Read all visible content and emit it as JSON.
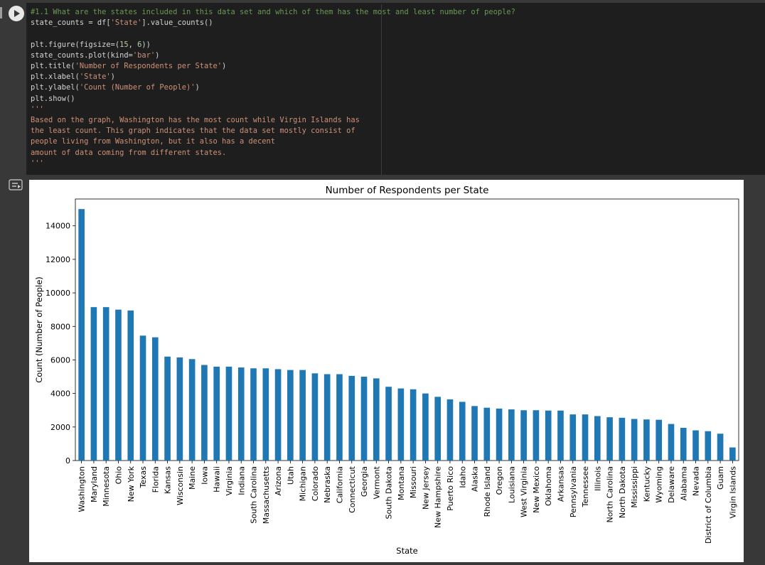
{
  "code_cell": {
    "lines": [
      [
        {
          "t": "#1.1 What are the states included in this data set and which of them has the most and least number of people?",
          "c": "comment"
        }
      ],
      [
        {
          "t": "state_counts = df["
        },
        {
          "t": "'State'",
          "c": "str"
        },
        {
          "t": "].value_counts()"
        }
      ],
      [
        {
          "t": ""
        }
      ],
      [
        {
          "t": "plt.figure(figsize=("
        },
        {
          "t": "15",
          "c": "num"
        },
        {
          "t": ", "
        },
        {
          "t": "6",
          "c": "num"
        },
        {
          "t": "))"
        }
      ],
      [
        {
          "t": "state_counts.plot(kind="
        },
        {
          "t": "'bar'",
          "c": "str"
        },
        {
          "t": ")"
        }
      ],
      [
        {
          "t": "plt.title("
        },
        {
          "t": "'Number of Respondents per State'",
          "c": "str"
        },
        {
          "t": ")"
        }
      ],
      [
        {
          "t": "plt.xlabel("
        },
        {
          "t": "'State'",
          "c": "str"
        },
        {
          "t": ")"
        }
      ],
      [
        {
          "t": "plt.ylabel("
        },
        {
          "t": "'Count (Number of People)'",
          "c": "str"
        },
        {
          "t": ")"
        }
      ],
      [
        {
          "t": "plt.show()"
        }
      ],
      [
        {
          "t": "'''",
          "c": "doc"
        }
      ],
      [
        {
          "t": "Based on the graph, Washington has the most count while Virgin Islands has",
          "c": "doc"
        }
      ],
      [
        {
          "t": "the least count. This graph indicates that the data set mostly consist of",
          "c": "doc"
        }
      ],
      [
        {
          "t": "people living from Washington, but it also has a decent",
          "c": "doc"
        }
      ],
      [
        {
          "t": "amount of data coming from different states.",
          "c": "doc"
        }
      ],
      [
        {
          "t": "'''",
          "c": "doc"
        }
      ]
    ]
  },
  "icons": {
    "run": "play-circle-icon",
    "output_toggle": "output-settings-icon"
  },
  "chart_data": {
    "type": "bar",
    "title": "Number of Respondents per State",
    "xlabel": "State",
    "ylabel": "Count (Number of People)",
    "ylim": [
      0,
      15600
    ],
    "yticks": [
      0,
      2000,
      4000,
      6000,
      8000,
      10000,
      12000,
      14000
    ],
    "color": "#1f77b4",
    "categories": [
      "Washington",
      "Maryland",
      "Minnesota",
      "Ohio",
      "New York",
      "Texas",
      "Florida",
      "Kansas",
      "Wisconsin",
      "Maine",
      "Iowa",
      "Hawaii",
      "Virginia",
      "Indiana",
      "South Carolina",
      "Massachusetts",
      "Arizona",
      "Utah",
      "Michigan",
      "Colorado",
      "Nebraska",
      "California",
      "Connecticut",
      "Georgia",
      "Vermont",
      "South Dakota",
      "Montana",
      "Missouri",
      "New Jersey",
      "New Hampshire",
      "Puerto Rico",
      "Idaho",
      "Alaska",
      "Rhode Island",
      "Oregon",
      "Louisiana",
      "West Virginia",
      "New Mexico",
      "Oklahoma",
      "Arkansas",
      "Pennsylvania",
      "Tennessee",
      "Illinois",
      "North Carolina",
      "North Dakota",
      "Mississippi",
      "Kentucky",
      "Wyoming",
      "Delaware",
      "Alabama",
      "Nevada",
      "District of Columbia",
      "Guam",
      "Virgin Islands"
    ],
    "values": [
      15000,
      9150,
      9150,
      9000,
      8950,
      7450,
      7350,
      6200,
      6150,
      6050,
      5700,
      5600,
      5600,
      5550,
      5500,
      5500,
      5450,
      5400,
      5400,
      5200,
      5150,
      5150,
      5050,
      5000,
      4900,
      4400,
      4300,
      4250,
      4000,
      3800,
      3650,
      3500,
      3250,
      3150,
      3100,
      3050,
      3000,
      3000,
      2980,
      2980,
      2750,
      2750,
      2650,
      2580,
      2550,
      2480,
      2450,
      2430,
      2180,
      1950,
      1800,
      1750,
      1600,
      780
    ]
  }
}
